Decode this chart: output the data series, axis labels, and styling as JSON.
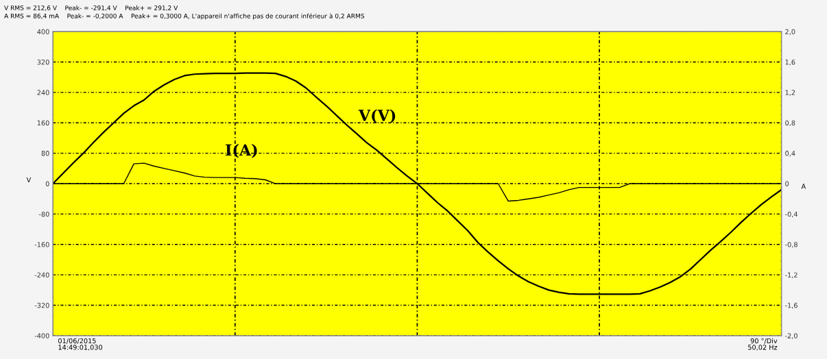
{
  "chart_data": {
    "type": "line",
    "annotations": [
      "V RMS = 212,6 V    Peak- = -291,4 V    Peak+ = 291,2 V",
      "A RMS = 86,4 mA    Peak- = -0,2000 A    Peak+ = 0,3000 A, L'appareil n'affiche pas de courant inférieur à 0,2 ARMS",
      "01/06/2015\n14:49:01,030",
      "90 °/Div\n50,02 Hz"
    ],
    "ylabel": "V",
    "y2label": "A",
    "categories": [
      null,
      null,
      null,
      null,
      null,
      null,
      null,
      null,
      null,
      null,
      null,
      null,
      null,
      null,
      null,
      null,
      null,
      null,
      null,
      null,
      null,
      null,
      null,
      null,
      null,
      null,
      null,
      null,
      null,
      null,
      null,
      null,
      null,
      null,
      null,
      null,
      null,
      null,
      null,
      null,
      null,
      null,
      null,
      null,
      null,
      null,
      null,
      null,
      null,
      null,
      null,
      null,
      null,
      null,
      null,
      null,
      null,
      null,
      null,
      null,
      null,
      null,
      null,
      null,
      null,
      null,
      null,
      null,
      null,
      null,
      null,
      null,
      null
    ],
    "series": [
      {
        "name": "V(V)",
        "color": "#000000",
        "values": [
          0,
          27,
          54,
          80,
          108,
          135,
          160,
          185,
          205,
          220,
          243,
          260,
          274,
          284,
          288,
          289,
          290,
          290,
          290,
          291,
          291,
          291,
          290,
          282,
          270,
          252,
          228,
          205,
          180,
          155,
          132,
          108,
          88,
          65,
          42,
          20,
          0,
          -25,
          -50,
          -72,
          -98,
          -124,
          -155,
          -180,
          -203,
          -224,
          -243,
          -258,
          -270,
          -280,
          -286,
          -290,
          -291,
          -291,
          -291,
          -291,
          -291,
          -291,
          -290,
          -282,
          -272,
          -260,
          -245,
          -225,
          -200,
          -175,
          -152,
          -128,
          -102,
          -78,
          -55,
          -35,
          -16
        ]
      },
      {
        "name": "I(A)",
        "color": "#000000",
        "axis": "y2",
        "values": [
          0,
          0,
          0,
          0,
          0,
          0,
          0,
          0,
          0.26,
          0.27,
          0.23,
          0.2,
          0.17,
          0.14,
          0.1,
          0.085,
          0.08,
          0.08,
          0.08,
          0.07,
          0.065,
          0.05,
          0,
          0,
          0,
          0,
          0,
          0,
          0,
          0,
          0,
          0,
          0,
          0,
          0,
          0,
          0,
          0,
          0,
          0,
          0,
          0,
          0,
          0,
          0,
          -0.23,
          -0.22,
          -0.2,
          -0.18,
          -0.15,
          -0.12,
          -0.08,
          -0.05,
          -0.05,
          -0.05,
          -0.05,
          -0.05,
          0,
          0,
          0,
          0,
          0,
          0,
          0,
          0,
          0,
          0,
          0,
          0,
          0,
          0,
          0,
          0
        ]
      }
    ],
    "ylim": [
      -400,
      400
    ],
    "yticks": [
      -400,
      -320,
      -240,
      -160,
      -80,
      0,
      80,
      160,
      240,
      320,
      400
    ],
    "y2lim": [
      -2,
      2
    ],
    "y2ticks": [
      {
        "value": -2,
        "label": "-2,0"
      },
      {
        "value": -1.6,
        "label": "-1,6"
      },
      {
        "value": -1.2,
        "label": "-1,2"
      },
      {
        "value": -0.8,
        "label": "-0,8"
      },
      {
        "value": -0.4,
        "label": "-0,4"
      },
      {
        "value": 0,
        "label": "0"
      },
      {
        "value": 0.4,
        "label": "0,4"
      },
      {
        "value": 0.8,
        "label": "0,8"
      },
      {
        "value": 1.2,
        "label": "1,2"
      },
      {
        "value": 1.6,
        "label": "1,6"
      },
      {
        "value": 2,
        "label": "2,0"
      }
    ],
    "grid": true,
    "line_style": "solid",
    "marker": "none"
  }
}
